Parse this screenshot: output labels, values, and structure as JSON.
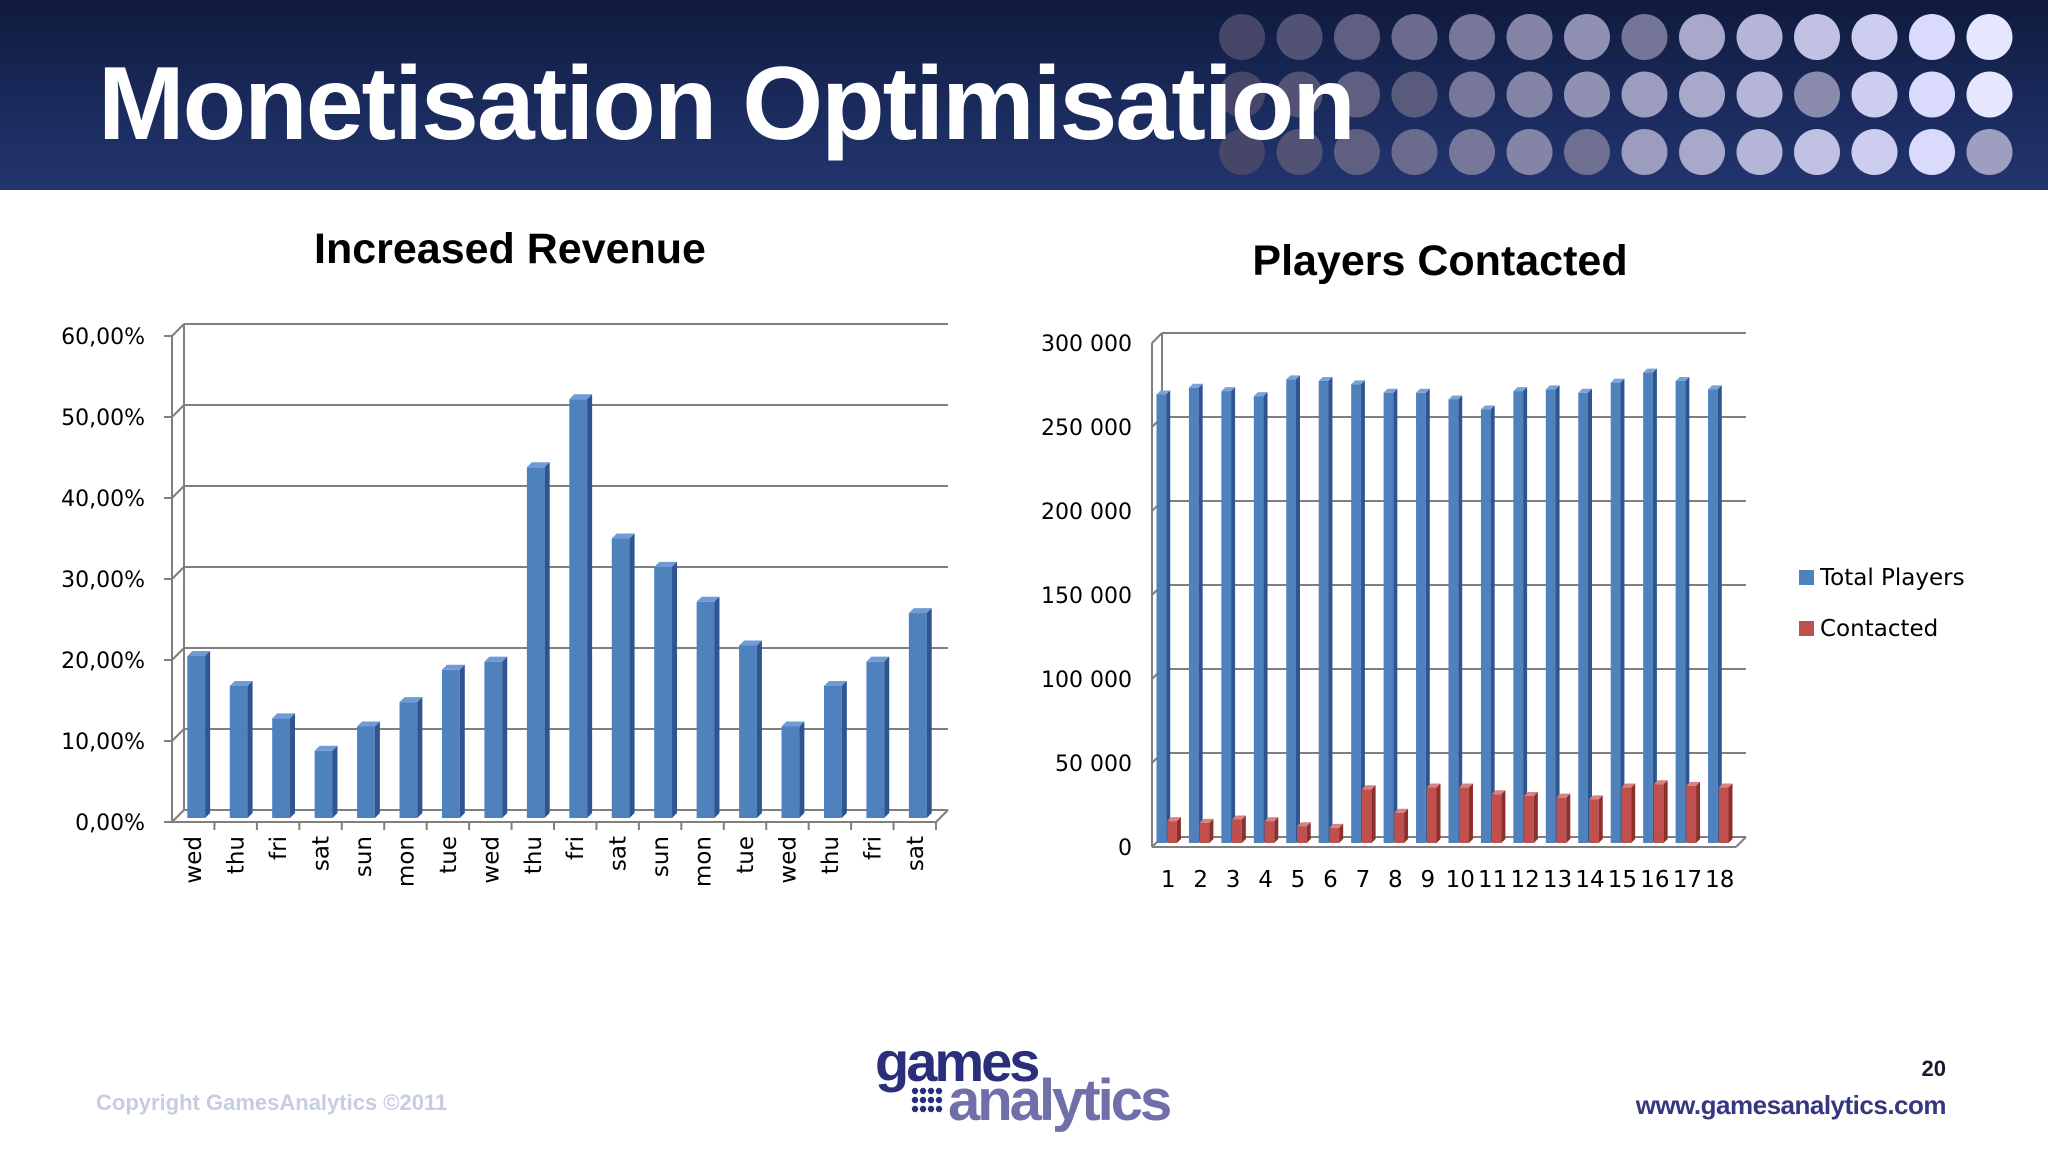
{
  "slide": {
    "title": "Monetisation Optimisation",
    "slide_number": "20",
    "copyright": "Copyright GamesAnalytics ©2011",
    "website": "www.gamesanalytics.com",
    "logo_top": "games",
    "logo_bottom": "analytics"
  },
  "colors": {
    "header_bg": "#1a2a5c",
    "bar_blue": "#4f81bd",
    "bar_red": "#c0504d"
  },
  "chart_data": [
    {
      "type": "bar",
      "title": "Increased Revenue",
      "xlabel": "",
      "ylabel": "",
      "ylim": [
        0,
        60
      ],
      "grid": true,
      "y_ticks": [
        "0,00%",
        "10,00%",
        "20,00%",
        "30,00%",
        "40,00%",
        "50,00%",
        "60,00%"
      ],
      "categories": [
        "wed",
        "thu",
        "fri",
        "sat",
        "sun",
        "mon",
        "tue",
        "wed",
        "thu",
        "fri",
        "sat",
        "sun",
        "mon",
        "tue",
        "wed",
        "thu",
        "fri",
        "sat"
      ],
      "values": [
        20,
        16.3,
        12.3,
        8.3,
        11.3,
        14.3,
        18.3,
        19.3,
        43.3,
        51.7,
        34.5,
        31,
        26.7,
        21.3,
        11.3,
        16.3,
        19.3,
        25.3
      ]
    },
    {
      "type": "bar",
      "title": "Players Contacted",
      "xlabel": "",
      "ylabel": "",
      "ylim": [
        0,
        300000
      ],
      "grid": true,
      "legend": "right",
      "y_ticks": [
        "0",
        "50 000",
        "100 000",
        "150 000",
        "200 000",
        "250 000",
        "300 000"
      ],
      "categories": [
        "1",
        "2",
        "3",
        "4",
        "5",
        "6",
        "7",
        "8",
        "9",
        "10",
        "11",
        "12",
        "13",
        "14",
        "15",
        "16",
        "17",
        "18"
      ],
      "series": [
        {
          "name": "Total Players",
          "values": [
            267000,
            271000,
            269000,
            266000,
            276000,
            275000,
            273000,
            268000,
            268000,
            264000,
            258000,
            269000,
            270000,
            268000,
            274000,
            280000,
            275000,
            270000
          ]
        },
        {
          "name": "Contacted",
          "values": [
            13000,
            12000,
            14000,
            13000,
            10000,
            9000,
            32000,
            18000,
            33000,
            33000,
            29000,
            28000,
            27000,
            26000,
            33000,
            35000,
            34000,
            33000
          ]
        }
      ]
    }
  ]
}
